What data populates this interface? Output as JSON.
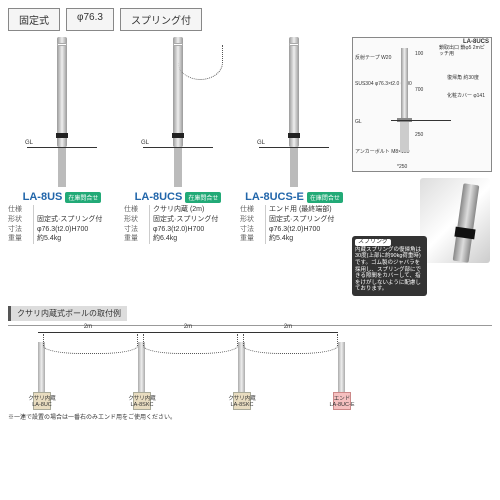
{
  "tabs": [
    "固定式",
    "φ76.3",
    "スプリング付"
  ],
  "spec_labels": {
    "shape": "形状",
    "size": "寸法",
    "weight": "重量",
    "spec": "仕様"
  },
  "badge": "在庫問合せ",
  "products": [
    {
      "code": "LA-8US",
      "spec": "",
      "shape": "固定式·スプリング付",
      "size": "φ76.3(t2.0)H700",
      "weight": "約5.4kg",
      "chain": false
    },
    {
      "code": "LA-8UCS",
      "spec": "クサリ内蔵 (2m)",
      "shape": "固定式·スプリング付",
      "size": "φ76.3(t2.0)H700",
      "weight": "約6.4kg",
      "chain": true
    },
    {
      "code": "LA-8UCS-E",
      "spec": "エンド用 (最終端部)",
      "shape": "固定式·スプリング付",
      "size": "φ76.3(t2.0)H700",
      "weight": "約5.4kg",
      "chain": false
    }
  ],
  "diagram": {
    "title": "LA-8UCS",
    "labels": [
      "反射テープ W20",
      "SUS304 φ76.3×t2.0 #400",
      "GL",
      "アンカーボルト M8×150",
      "鎖取出口 鎖φ5 2mピッチ用",
      "復帰角 約30度",
      "化粧カバー φ141"
    ],
    "dims": [
      "100",
      "700",
      "250",
      "*250"
    ]
  },
  "spring": {
    "title": "スプリング",
    "text": "内蔵スプリングの復帰角は30度(上部に約90kg荷重時)です。ゴム製のジャバラを採用し、スプリング部にできる隙間をカバーして、指をけがしないように配慮しております。"
  },
  "install": {
    "header": "クサリ内蔵式ポールの取付例",
    "span": "2m",
    "items": [
      {
        "label": "クサリ内蔵",
        "code": "LA-8UC"
      },
      {
        "label": "クサリ内蔵",
        "code": "LA-8SKC"
      },
      {
        "label": "クサリ内蔵",
        "code": "LA-8SKC"
      },
      {
        "label": "エンド",
        "code": "LA-8UC-E"
      }
    ],
    "note": "※一連で設置の場合は一番右のみエンド用をご使用ください。"
  },
  "colors": {
    "accent": "#26a",
    "badge": "#2a7",
    "end": "#f5c0c0"
  }
}
